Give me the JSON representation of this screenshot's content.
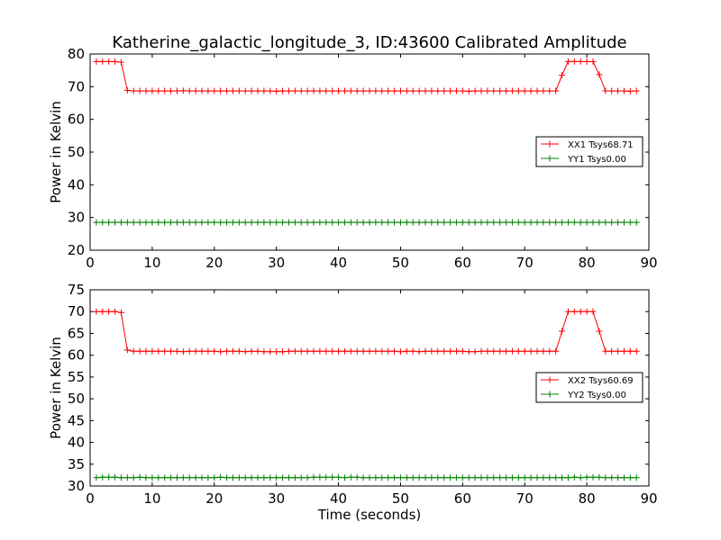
{
  "title": "Katherine_galactic_longitude_3, ID:43600 Calibrated Amplitude",
  "colors": {
    "xx": "#ff0000",
    "yy": "#008000"
  },
  "chart_data": [
    {
      "type": "line",
      "xlim": [
        0,
        90
      ],
      "ylim": [
        20,
        80
      ],
      "xticks": [
        "0",
        "10",
        "20",
        "30",
        "40",
        "50",
        "60",
        "70",
        "80",
        "90"
      ],
      "yticks": [
        "20",
        "30",
        "40",
        "50",
        "60",
        "70",
        "80"
      ],
      "xlabel": "",
      "ylabel": "Power in Kelvin",
      "legend_position": "right",
      "series": [
        {
          "name": "XX1 Tsys68.71",
          "color": "#ff0000",
          "x": [
            1,
            2,
            3,
            4,
            5,
            6,
            7,
            8,
            9,
            10,
            11,
            12,
            13,
            14,
            15,
            16,
            17,
            18,
            19,
            20,
            21,
            22,
            23,
            24,
            25,
            26,
            27,
            28,
            29,
            30,
            31,
            32,
            33,
            34,
            35,
            36,
            37,
            38,
            39,
            40,
            41,
            42,
            43,
            44,
            45,
            46,
            47,
            48,
            49,
            50,
            51,
            52,
            53,
            54,
            55,
            56,
            57,
            58,
            59,
            60,
            61,
            62,
            63,
            64,
            65,
            66,
            67,
            68,
            69,
            70,
            71,
            72,
            73,
            74,
            75,
            76,
            77,
            78,
            79,
            80,
            81,
            82,
            83,
            84,
            85,
            86,
            87,
            88
          ],
          "y": [
            77.7,
            77.7,
            77.7,
            77.7,
            77.5,
            68.9,
            68.7,
            68.7,
            68.7,
            68.7,
            68.7,
            68.7,
            68.7,
            68.7,
            68.8,
            68.7,
            68.7,
            68.7,
            68.7,
            68.7,
            68.7,
            68.7,
            68.7,
            68.7,
            68.7,
            68.7,
            68.7,
            68.7,
            68.7,
            68.6,
            68.7,
            68.7,
            68.7,
            68.7,
            68.7,
            68.7,
            68.7,
            68.7,
            68.7,
            68.7,
            68.7,
            68.7,
            68.7,
            68.7,
            68.7,
            68.7,
            68.7,
            68.7,
            68.7,
            68.7,
            68.7,
            68.7,
            68.7,
            68.7,
            68.7,
            68.7,
            68.7,
            68.7,
            68.7,
            68.7,
            68.6,
            68.7,
            68.7,
            68.7,
            68.7,
            68.7,
            68.7,
            68.7,
            68.7,
            68.7,
            68.7,
            68.7,
            68.7,
            68.7,
            68.7,
            73.5,
            77.7,
            77.7,
            77.7,
            77.7,
            77.7,
            73.7,
            68.7,
            68.7,
            68.7,
            68.7,
            68.6,
            68.7
          ]
        },
        {
          "name": "YY1 Tsys0.00",
          "color": "#008000",
          "x": [
            1,
            2,
            3,
            4,
            5,
            6,
            7,
            8,
            9,
            10,
            11,
            12,
            13,
            14,
            15,
            16,
            17,
            18,
            19,
            20,
            21,
            22,
            23,
            24,
            25,
            26,
            27,
            28,
            29,
            30,
            31,
            32,
            33,
            34,
            35,
            36,
            37,
            38,
            39,
            40,
            41,
            42,
            43,
            44,
            45,
            46,
            47,
            48,
            49,
            50,
            51,
            52,
            53,
            54,
            55,
            56,
            57,
            58,
            59,
            60,
            61,
            62,
            63,
            64,
            65,
            66,
            67,
            68,
            69,
            70,
            71,
            72,
            73,
            74,
            75,
            76,
            77,
            78,
            79,
            80,
            81,
            82,
            83,
            84,
            85,
            86,
            87,
            88
          ],
          "y": [
            28.5,
            28.5,
            28.5,
            28.5,
            28.5,
            28.5,
            28.5,
            28.5,
            28.5,
            28.5,
            28.5,
            28.5,
            28.5,
            28.5,
            28.5,
            28.5,
            28.5,
            28.5,
            28.5,
            28.5,
            28.5,
            28.5,
            28.5,
            28.5,
            28.5,
            28.5,
            28.5,
            28.5,
            28.5,
            28.5,
            28.5,
            28.5,
            28.5,
            28.5,
            28.5,
            28.5,
            28.5,
            28.5,
            28.5,
            28.5,
            28.5,
            28.5,
            28.5,
            28.5,
            28.5,
            28.5,
            28.5,
            28.5,
            28.5,
            28.5,
            28.5,
            28.5,
            28.5,
            28.5,
            28.5,
            28.5,
            28.5,
            28.5,
            28.5,
            28.5,
            28.5,
            28.5,
            28.5,
            28.5,
            28.5,
            28.5,
            28.5,
            28.5,
            28.5,
            28.5,
            28.5,
            28.5,
            28.5,
            28.5,
            28.5,
            28.5,
            28.5,
            28.5,
            28.5,
            28.5,
            28.5,
            28.5,
            28.5,
            28.5,
            28.5,
            28.5,
            28.5,
            28.5
          ]
        }
      ]
    },
    {
      "type": "line",
      "xlim": [
        0,
        90
      ],
      "ylim": [
        30,
        75
      ],
      "xticks": [
        "0",
        "10",
        "20",
        "30",
        "40",
        "50",
        "60",
        "70",
        "80",
        "90"
      ],
      "yticks": [
        "30",
        "35",
        "40",
        "45",
        "50",
        "55",
        "60",
        "65",
        "70",
        "75"
      ],
      "xlabel": "Time (seconds)",
      "ylabel": "Power in Kelvin",
      "legend_position": "right",
      "series": [
        {
          "name": "XX2 Tsys60.69",
          "color": "#ff0000",
          "x": [
            1,
            2,
            3,
            4,
            5,
            6,
            7,
            8,
            9,
            10,
            11,
            12,
            13,
            14,
            15,
            16,
            17,
            18,
            19,
            20,
            21,
            22,
            23,
            24,
            25,
            26,
            27,
            28,
            29,
            30,
            31,
            32,
            33,
            34,
            35,
            36,
            37,
            38,
            39,
            40,
            41,
            42,
            43,
            44,
            45,
            46,
            47,
            48,
            49,
            50,
            51,
            52,
            53,
            54,
            55,
            56,
            57,
            58,
            59,
            60,
            61,
            62,
            63,
            64,
            65,
            66,
            67,
            68,
            69,
            70,
            71,
            72,
            73,
            74,
            75,
            76,
            77,
            78,
            79,
            80,
            81,
            82,
            83,
            84,
            85,
            86,
            87,
            88
          ],
          "y": [
            70.0,
            70.0,
            70.0,
            70.0,
            69.8,
            61.2,
            60.9,
            60.9,
            60.9,
            60.9,
            60.9,
            60.9,
            60.9,
            60.9,
            60.8,
            60.9,
            60.9,
            60.9,
            60.9,
            60.9,
            60.8,
            60.9,
            60.9,
            60.9,
            60.8,
            60.9,
            60.9,
            60.8,
            60.8,
            60.8,
            60.8,
            60.9,
            60.9,
            60.9,
            60.9,
            60.9,
            60.9,
            60.9,
            60.9,
            60.9,
            60.9,
            60.9,
            60.9,
            60.9,
            60.9,
            60.9,
            60.9,
            60.9,
            60.9,
            60.8,
            60.9,
            60.9,
            60.8,
            60.9,
            60.9,
            60.9,
            60.9,
            60.9,
            60.9,
            60.9,
            60.8,
            60.8,
            60.9,
            60.9,
            60.9,
            60.9,
            60.9,
            60.9,
            60.9,
            60.9,
            60.9,
            60.9,
            60.9,
            60.9,
            60.9,
            65.5,
            70.0,
            70.0,
            70.0,
            70.0,
            70.0,
            65.5,
            60.9,
            60.9,
            60.9,
            60.9,
            60.9,
            60.9
          ]
        },
        {
          "name": "YY2 Tsys0.00",
          "color": "#008000",
          "x": [
            1,
            2,
            3,
            4,
            5,
            6,
            7,
            8,
            9,
            10,
            11,
            12,
            13,
            14,
            15,
            16,
            17,
            18,
            19,
            20,
            21,
            22,
            23,
            24,
            25,
            26,
            27,
            28,
            29,
            30,
            31,
            32,
            33,
            34,
            35,
            36,
            37,
            38,
            39,
            40,
            41,
            42,
            43,
            44,
            45,
            46,
            47,
            48,
            49,
            50,
            51,
            52,
            53,
            54,
            55,
            56,
            57,
            58,
            59,
            60,
            61,
            62,
            63,
            64,
            65,
            66,
            67,
            68,
            69,
            70,
            71,
            72,
            73,
            74,
            75,
            76,
            77,
            78,
            79,
            80,
            81,
            82,
            83,
            84,
            85,
            86,
            87,
            88
          ],
          "y": [
            31.9,
            32.0,
            32.0,
            32.0,
            31.9,
            31.9,
            31.9,
            32.0,
            31.9,
            31.9,
            31.9,
            31.9,
            31.9,
            31.9,
            31.9,
            31.9,
            31.9,
            31.9,
            31.9,
            31.9,
            32.0,
            31.9,
            31.9,
            31.9,
            31.9,
            31.9,
            31.9,
            31.9,
            31.9,
            31.9,
            31.9,
            31.9,
            31.9,
            31.9,
            31.9,
            32.0,
            32.0,
            32.0,
            32.0,
            32.0,
            31.9,
            32.0,
            32.0,
            31.9,
            31.9,
            31.9,
            31.9,
            31.9,
            31.9,
            31.9,
            31.9,
            31.9,
            31.9,
            31.9,
            31.9,
            31.9,
            31.9,
            31.9,
            31.9,
            31.9,
            31.9,
            31.9,
            31.9,
            31.9,
            31.9,
            31.9,
            31.9,
            31.9,
            31.9,
            31.9,
            31.9,
            31.9,
            31.9,
            31.9,
            31.9,
            31.9,
            31.9,
            32.0,
            31.9,
            32.0,
            32.0,
            32.0,
            31.9,
            31.9,
            31.9,
            31.9,
            31.9,
            31.9
          ]
        }
      ]
    }
  ]
}
